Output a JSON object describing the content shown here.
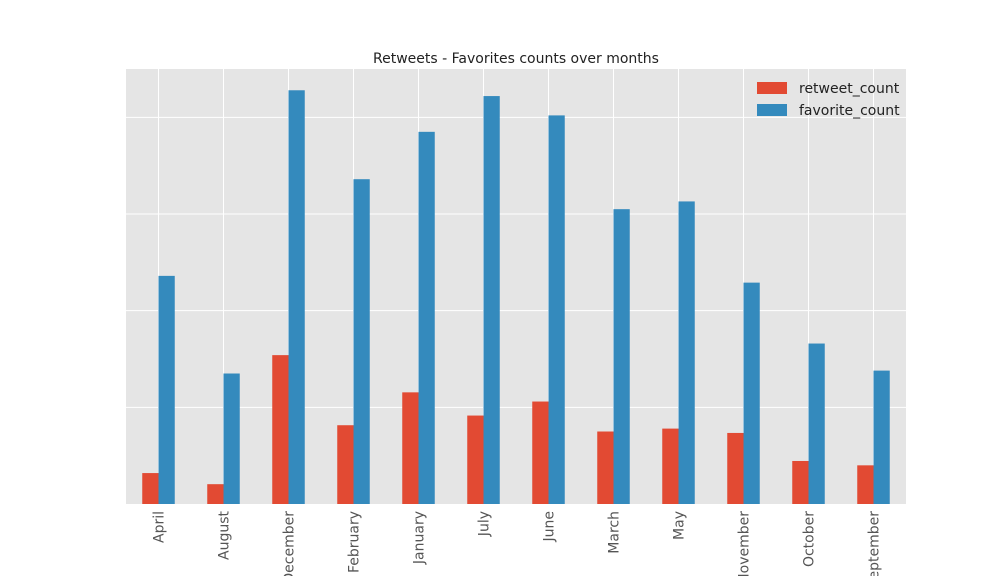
{
  "chart_data": {
    "type": "bar",
    "title": "Retweets - Favorites counts over months",
    "xlabel": "",
    "ylabel": "",
    "categories": [
      "April",
      "August",
      "December",
      "February",
      "January",
      "July",
      "June",
      "March",
      "May",
      "November",
      "October",
      "September"
    ],
    "series": [
      {
        "name": "retweet_count",
        "color": "#E24A33",
        "values": [
          64,
          41,
          308,
          163,
          231,
          183,
          212,
          150,
          156,
          147,
          89,
          80
        ]
      },
      {
        "name": "favorite_count",
        "color": "#348ABD",
        "values": [
          472,
          270,
          856,
          672,
          770,
          844,
          804,
          610,
          626,
          458,
          332,
          276
        ]
      }
    ],
    "ylim": [
      0,
      900
    ],
    "ytick_values": [
      0,
      200,
      400,
      600,
      800
    ],
    "ytick_labels_visible": false,
    "grid": true,
    "legend_position": "top-right",
    "style": "ggplot"
  }
}
